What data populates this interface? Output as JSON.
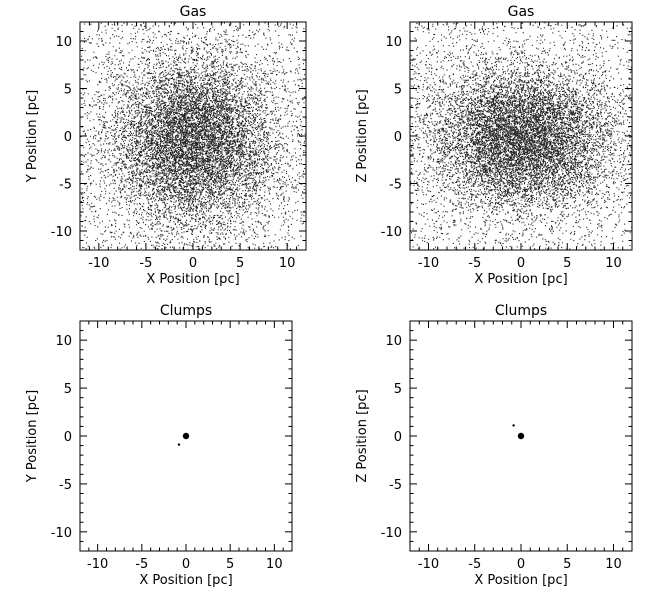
{
  "chart_data": [
    {
      "type": "scatter",
      "title": "Gas",
      "xlabel": "X Position [pc]",
      "ylabel": "Y Position [pc]",
      "xlim": [
        -12,
        12
      ],
      "ylim": [
        -12,
        12
      ],
      "xticks": [
        -10,
        -5,
        0,
        5,
        10
      ],
      "yticks": [
        -10,
        -5,
        0,
        5,
        10
      ],
      "grid": false,
      "series": [
        {
          "points_description_free": true,
          "distribution": "centrally concentrated gaussian cloud",
          "center": [
            0.0,
            -0.5
          ],
          "sigma": [
            4.5,
            4.5
          ],
          "count": 9000
        }
      ]
    },
    {
      "type": "scatter",
      "title": "Gas",
      "xlabel": "X Position [pc]",
      "ylabel": "Z Position [pc]",
      "xlim": [
        -12,
        12
      ],
      "ylim": [
        -12,
        12
      ],
      "xticks": [
        -10,
        -5,
        0,
        5,
        10
      ],
      "yticks": [
        -10,
        -5,
        0,
        5,
        10
      ],
      "grid": false,
      "series": [
        {
          "points_description_free": true,
          "distribution": "flattened gaussian cloud",
          "center": [
            0.0,
            -0.2
          ],
          "sigma": [
            5.0,
            3.8
          ],
          "count": 9000
        }
      ]
    },
    {
      "type": "scatter",
      "title": "Clumps",
      "xlabel": "X Position [pc]",
      "ylabel": "Y Position [pc]",
      "xlim": [
        -12,
        12
      ],
      "ylim": [
        -12,
        12
      ],
      "xticks": [
        -10,
        -5,
        0,
        5,
        10
      ],
      "yticks": [
        -10,
        -5,
        0,
        5,
        10
      ],
      "grid": false,
      "series": [
        {
          "points": [
            {
              "x": 0.0,
              "y": 0.0,
              "size": "large"
            },
            {
              "x": -0.8,
              "y": -0.9,
              "size": "small"
            }
          ]
        }
      ]
    },
    {
      "type": "scatter",
      "title": "Clumps",
      "xlabel": "X Position [pc]",
      "ylabel": "Z Position [pc]",
      "xlim": [
        -12,
        12
      ],
      "ylim": [
        -12,
        12
      ],
      "xticks": [
        -10,
        -5,
        0,
        5,
        10
      ],
      "yticks": [
        -10,
        -5,
        0,
        5,
        10
      ],
      "grid": false,
      "series": [
        {
          "points": [
            {
              "x": 0.0,
              "y": 0.0,
              "size": "large"
            },
            {
              "x": -0.8,
              "y": 1.1,
              "size": "small"
            }
          ]
        }
      ]
    }
  ]
}
